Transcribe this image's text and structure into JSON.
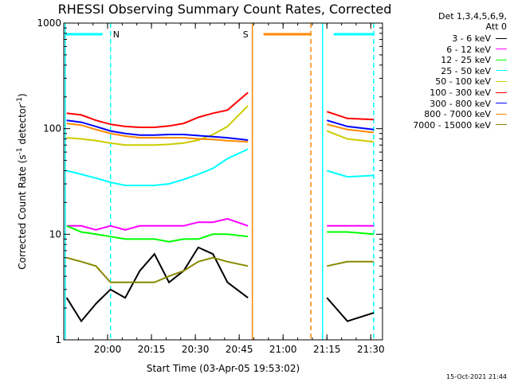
{
  "chart_data": {
    "type": "line",
    "title": "RHESSI Observing Summary Count Rates, Corrected",
    "xlabel": "Start Time (03-Apr-05 19:53:02)",
    "ylabel_parts": [
      "Corrected Count Rate (s",
      "-1",
      " detector",
      "-1",
      ")"
    ],
    "yscale": "log",
    "ylim": [
      1,
      1000
    ],
    "xlim_min": [
      -8,
      101
    ],
    "x_ticks": [
      {
        "min": 7,
        "label": "20:00"
      },
      {
        "min": 22,
        "label": "20:15"
      },
      {
        "min": 37,
        "label": "20:30"
      },
      {
        "min": 52,
        "label": "20:45"
      },
      {
        "min": 67,
        "label": "21:00"
      },
      {
        "min": 82,
        "label": "21:15"
      },
      {
        "min": 97,
        "label": "21:30"
      }
    ],
    "y_ticks": [
      {
        "value": 1,
        "label": "1"
      },
      {
        "value": 10,
        "label": "10"
      },
      {
        "value": 100,
        "label": "100"
      },
      {
        "value": 1000,
        "label": "1000"
      }
    ],
    "legend_header": [
      "Det 1,3,4,5,6,9,",
      "Att 0"
    ],
    "series": [
      {
        "name": "3 - 6 keV",
        "color": "#000000",
        "values": [
          2.5,
          1.5,
          2.2,
          3.0,
          2.5,
          4.5,
          6.5,
          3.5,
          4.5,
          7.5,
          6.5,
          3.5,
          2.5,
          2.5,
          1.5,
          1.8
        ]
      },
      {
        "name": "6 - 12 keV",
        "color": "#ff00ff",
        "values": [
          12,
          12,
          11,
          12,
          11,
          12,
          12,
          12,
          12,
          13,
          13,
          14,
          12,
          12,
          12,
          12
        ]
      },
      {
        "name": "12 - 25 keV",
        "color": "#00ff00",
        "values": [
          12,
          10.5,
          10,
          9.5,
          9,
          9,
          9,
          8.5,
          9,
          9,
          10,
          10,
          9.5,
          10.5,
          10.5,
          10
        ]
      },
      {
        "name": "25 - 50 keV",
        "color": "#00ffff",
        "values": [
          40,
          37,
          34,
          31,
          29,
          29,
          29,
          30,
          33,
          37,
          42,
          52,
          64,
          40,
          35,
          36
        ]
      },
      {
        "name": "50 - 100 keV",
        "color": "#cccc00",
        "values": [
          82,
          80,
          77,
          73,
          70,
          70,
          70,
          71,
          73,
          78,
          88,
          105,
          165,
          95,
          80,
          75
        ]
      },
      {
        "name": "100 - 300 keV",
        "color": "#ff0000",
        "values": [
          140,
          135,
          120,
          110,
          105,
          103,
          103,
          106,
          112,
          128,
          140,
          150,
          220,
          145,
          125,
          122
        ]
      },
      {
        "name": "300 - 800 keV",
        "color": "#0000ff",
        "values": [
          120,
          115,
          105,
          95,
          90,
          87,
          87,
          88,
          88,
          86,
          84,
          82,
          78,
          120,
          105,
          98
        ]
      },
      {
        "name": "800 - 7000 keV",
        "color": "#ff8800",
        "values": [
          112,
          108,
          98,
          90,
          85,
          82,
          82,
          82,
          82,
          80,
          79,
          77,
          75,
          110,
          98,
          92
        ]
      },
      {
        "name": "7000 - 15000 keV",
        "color": "#888800",
        "values": [
          6,
          5.5,
          5,
          3.5,
          3.5,
          3.5,
          3.5,
          4,
          4.5,
          5.5,
          6,
          5.5,
          5,
          5,
          5.5,
          5.5
        ]
      }
    ],
    "x_samples_min": [
      -7,
      -2,
      3,
      8,
      13,
      18,
      23,
      28,
      33,
      38,
      43,
      48,
      55,
      82,
      89,
      98
    ],
    "intervals": [
      {
        "label": "N",
        "color": "#00ffff",
        "start_min": -7.5,
        "end_min": 8,
        "flag_side": "left"
      },
      {
        "label": "",
        "color": "#00ffff",
        "start_min": 80.5,
        "end_min": 98,
        "flag_side": "right"
      },
      {
        "label": "S",
        "color": "#ff8800",
        "start_min": 56.5,
        "end_min": 76.5,
        "flag_side": "right"
      }
    ],
    "grid": false
  },
  "footer_stamp": "15-Oct-2021 21:44"
}
